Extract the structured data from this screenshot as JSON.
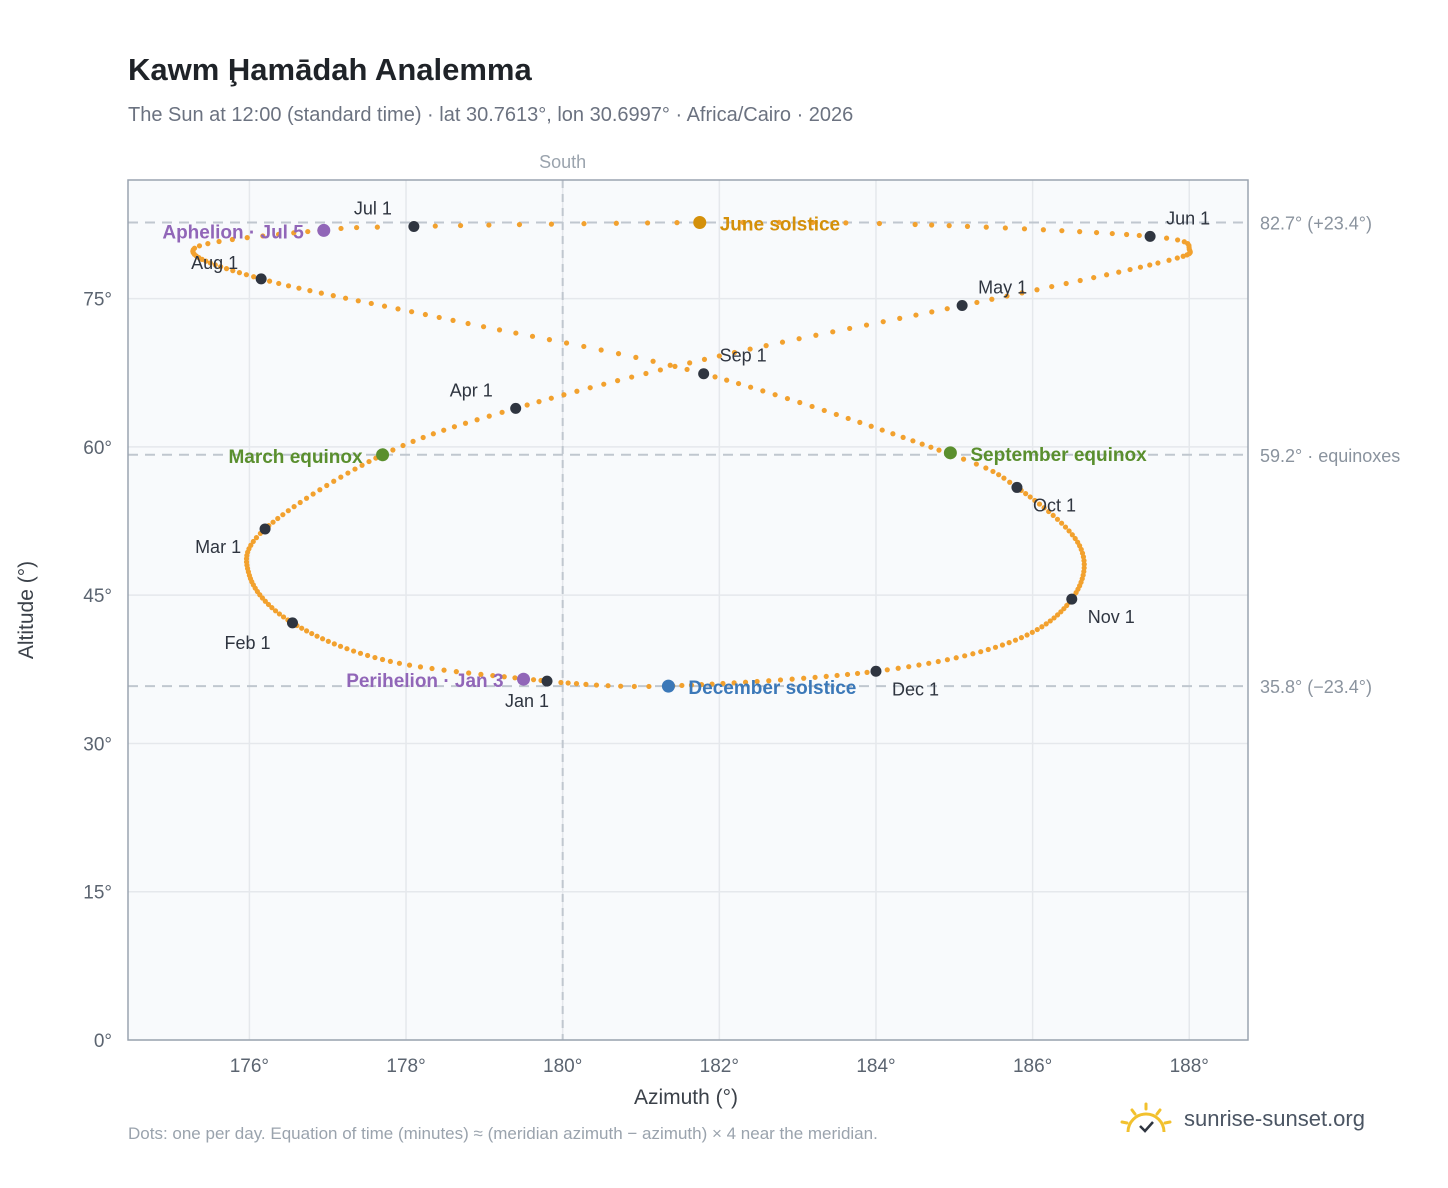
{
  "header": {
    "title": "Kawm Ḩamādah Analemma",
    "subtitle": "The Sun at 12:00 (standard time) · lat 30.7613°, lon 30.6997° · Africa/Cairo · 2026"
  },
  "footer": {
    "note": "Dots: one per day. Equation of time (minutes) ≈ (meridian azimuth − azimuth) × 4 near the meridian.",
    "brand": "sunrise-sunset.org"
  },
  "colors": {
    "path": "#f2a12e",
    "month_marker": "#2f3540",
    "solstice_june": "#d4900a",
    "solstice_december": "#3b78b8",
    "equinox": "#5a8f2e",
    "apsis": "#9166b8",
    "plot_bg": "#f8fafc",
    "grid": "#e5e8ec",
    "ref_line": "#c0c7cf"
  },
  "chart_data": {
    "type": "scatter",
    "title": "Kawm Ḩamādah Analemma",
    "xlabel": "Azimuth (°)",
    "ylabel": "Altitude (°)",
    "xlim": [
      174.45,
      188.75
    ],
    "ylim": [
      0,
      87
    ],
    "x_ticks": [
      176,
      178,
      180,
      182,
      184,
      186,
      188
    ],
    "x_tick_labels": [
      "176°",
      "178°",
      "180°",
      "182°",
      "184°",
      "186°",
      "188°"
    ],
    "y_ticks": [
      0,
      15,
      30,
      45,
      60,
      75
    ],
    "y_tick_labels": [
      "0°",
      "15°",
      "30°",
      "45°",
      "60°",
      "75°"
    ],
    "grid": true,
    "south_label": "South",
    "south_azimuth": 180,
    "reference_lines": [
      {
        "altitude": 82.7,
        "label": "82.7° (+23.4°)"
      },
      {
        "altitude": 59.2,
        "label": "59.2° · equinoxes"
      },
      {
        "altitude": 35.8,
        "label": "35.8° (−23.4°)"
      }
    ],
    "analemma_path": [
      {
        "doy": 1,
        "az": 179.8,
        "alt": 36.3
      },
      {
        "doy": 16,
        "az": 177.8,
        "alt": 38.3
      },
      {
        "doy": 32,
        "az": 176.55,
        "alt": 42.2
      },
      {
        "doy": 47,
        "az": 176.0,
        "alt": 47.0
      },
      {
        "doy": 60,
        "az": 176.2,
        "alt": 51.7
      },
      {
        "doy": 79,
        "az": 177.7,
        "alt": 59.2
      },
      {
        "doy": 91,
        "az": 179.4,
        "alt": 63.9
      },
      {
        "doy": 106,
        "az": 182.0,
        "alt": 69.2
      },
      {
        "doy": 121,
        "az": 185.1,
        "alt": 74.3
      },
      {
        "doy": 136,
        "az": 187.6,
        "alt": 78.6
      },
      {
        "doy": 145,
        "az": 188.0,
        "alt": 80.0
      },
      {
        "doy": 152,
        "az": 187.5,
        "alt": 81.3
      },
      {
        "doy": 166,
        "az": 184.5,
        "alt": 82.5
      },
      {
        "doy": 172,
        "az": 181.8,
        "alt": 82.7
      },
      {
        "doy": 182,
        "az": 178.1,
        "alt": 82.3
      },
      {
        "doy": 186,
        "az": 176.9,
        "alt": 81.9
      },
      {
        "doy": 196,
        "az": 175.3,
        "alt": 80.1
      },
      {
        "doy": 213,
        "az": 176.15,
        "alt": 77.0
      },
      {
        "doy": 229,
        "az": 178.6,
        "alt": 72.8
      },
      {
        "doy": 244,
        "az": 181.8,
        "alt": 67.4
      },
      {
        "doy": 266,
        "az": 184.9,
        "alt": 59.4
      },
      {
        "doy": 274,
        "az": 185.8,
        "alt": 55.9
      },
      {
        "doy": 290,
        "az": 186.6,
        "alt": 50.0
      },
      {
        "doy": 305,
        "az": 186.5,
        "alt": 44.6
      },
      {
        "doy": 320,
        "az": 185.7,
        "alt": 40.2
      },
      {
        "doy": 335,
        "az": 184.0,
        "alt": 37.3
      },
      {
        "doy": 355,
        "az": 181.3,
        "alt": 35.8
      },
      {
        "doy": 365,
        "az": 179.9,
        "alt": 36.2
      }
    ],
    "month_markers": [
      {
        "label": "Jan 1",
        "az": 179.8,
        "alt": 36.3
      },
      {
        "label": "Feb 1",
        "az": 176.55,
        "alt": 42.2
      },
      {
        "label": "Mar 1",
        "az": 176.2,
        "alt": 51.7
      },
      {
        "label": "Apr 1",
        "az": 179.4,
        "alt": 63.9
      },
      {
        "label": "May 1",
        "az": 185.1,
        "alt": 74.3
      },
      {
        "label": "Jun 1",
        "az": 187.5,
        "alt": 81.3
      },
      {
        "label": "Jul 1",
        "az": 178.1,
        "alt": 82.3
      },
      {
        "label": "Aug 1",
        "az": 176.15,
        "alt": 77.0
      },
      {
        "label": "Sep 1",
        "az": 181.8,
        "alt": 67.4
      },
      {
        "label": "Oct 1",
        "az": 185.8,
        "alt": 55.9
      },
      {
        "label": "Nov 1",
        "az": 186.5,
        "alt": 44.6
      },
      {
        "label": "Dec 1",
        "az": 184.0,
        "alt": 37.3
      }
    ],
    "events": [
      {
        "label": "June solstice",
        "az": 181.75,
        "alt": 82.7,
        "kind": "solstice_june"
      },
      {
        "label": "December solstice",
        "az": 181.35,
        "alt": 35.8,
        "kind": "solstice_december"
      },
      {
        "label": "March equinox",
        "az": 177.7,
        "alt": 59.2,
        "kind": "equinox"
      },
      {
        "label": "September equinox",
        "az": 184.95,
        "alt": 59.4,
        "kind": "equinox"
      },
      {
        "label": "Aphelion · Jul 5",
        "az": 176.95,
        "alt": 81.9,
        "kind": "apsis"
      },
      {
        "label": "Perihelion · Jan 3",
        "az": 179.5,
        "alt": 36.5,
        "kind": "apsis"
      }
    ]
  }
}
